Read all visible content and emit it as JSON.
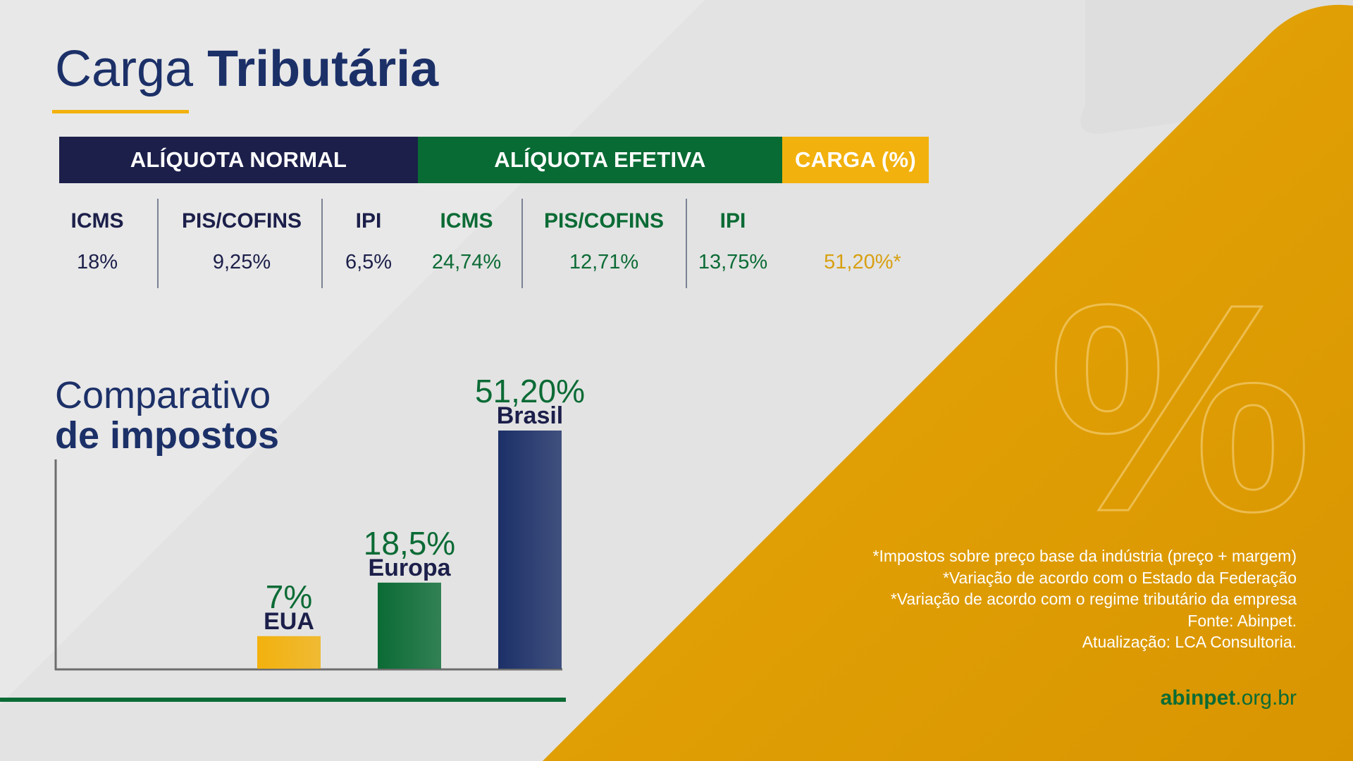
{
  "title": {
    "light": "Carga",
    "bold": "Tributária"
  },
  "headers": {
    "normal": "ALÍQUOTA NORMAL",
    "efetiva": "ALÍQUOTA EFETIVA",
    "carga": "CARGA (%)"
  },
  "aliquota_normal": [
    {
      "label": "ICMS",
      "value": "18%"
    },
    {
      "label": "PIS/COFINS",
      "value": "9,25%"
    },
    {
      "label": "IPI",
      "value": "6,5%"
    }
  ],
  "aliquota_efetiva": [
    {
      "label": "ICMS",
      "value": "24,74%"
    },
    {
      "label": "PIS/COFINS",
      "value": "12,71%"
    },
    {
      "label": "IPI",
      "value": "13,75%"
    }
  ],
  "carga": {
    "value": "51,20%*"
  },
  "comparativo": {
    "line1": "Comparativo",
    "line2": "de impostos"
  },
  "chart_data": {
    "type": "bar",
    "categories": [
      "EUA",
      "Europa",
      "Brasil"
    ],
    "values": [
      7,
      18.5,
      51.2
    ],
    "value_labels": [
      "7%",
      "18,5%",
      "51,20%"
    ],
    "colors": [
      "#f2b10d",
      "#0b6b35",
      "#1c3068"
    ],
    "ylim": [
      0,
      51.2
    ]
  },
  "notes": [
    "*Impostos sobre preço base da indústria (preço + margem)",
    "*Variação de acordo com o Estado da Federação",
    "*Variação de acordo com o regime tributário da empresa",
    "Fonte: Abinpet.",
    "Atualização: LCA Consultoria."
  ],
  "site": {
    "bold": "abinpet",
    "rest": ".org.br"
  },
  "decor": {
    "percent_symbol": "%"
  },
  "colors": {
    "navy": "#1c1f4a",
    "title_blue": "#1c3068",
    "green": "#0b6b35",
    "gold": "#f2b10d",
    "orange_panel": "#de9c05"
  }
}
